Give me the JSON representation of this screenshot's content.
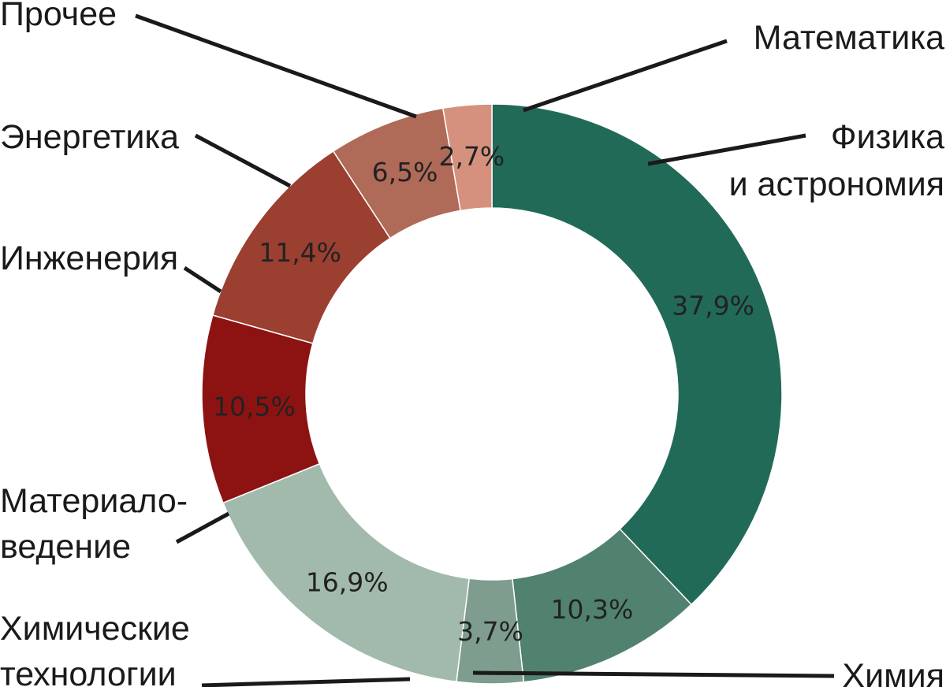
{
  "chart_data": {
    "type": "pie",
    "donut": true,
    "unit": "%",
    "slices": [
      {
        "label": "Физика и астрономия",
        "value": 37.9,
        "display": "37,9%",
        "color": "#226a58"
      },
      {
        "label": "Химия",
        "value": 10.3,
        "display": "10,3%",
        "color": "#518270"
      },
      {
        "label": "Химические технологии",
        "value": 3.7,
        "display": "3,7%",
        "color": "#7e9d8f"
      },
      {
        "label": "Материаловедение",
        "value": 16.9,
        "display": "16,9%",
        "color": "#a2baab"
      },
      {
        "label": "Инженерия",
        "value": 10.5,
        "display": "10,5%",
        "color": "#8d1313"
      },
      {
        "label": "Энергетика",
        "value": 11.4,
        "display": "11,4%",
        "color": "#9b3f31"
      },
      {
        "label": "Прочее",
        "value": 6.5,
        "display": "6,5%",
        "color": "#b06a58"
      },
      {
        "label": "Математика",
        "value": 2.7,
        "display": "2,7%",
        "color": "#d5917d"
      }
    ],
    "category_labels": [
      {
        "name": "matematika",
        "lines": [
          "Математика"
        ]
      },
      {
        "name": "fizika",
        "lines": [
          "Физика",
          "и астрономия"
        ]
      },
      {
        "name": "prochee",
        "lines": [
          "Прочее"
        ]
      },
      {
        "name": "energetika",
        "lines": [
          "Энергетика"
        ]
      },
      {
        "name": "inzheneriya",
        "lines": [
          "Инженерия"
        ]
      },
      {
        "name": "materialovedenie",
        "lines": [
          "Материало-",
          "ведение"
        ]
      },
      {
        "name": "khim-tekhnologii",
        "lines": [
          "Химические",
          "технологии"
        ]
      },
      {
        "name": "khimiya",
        "lines": [
          "Химия"
        ]
      }
    ]
  }
}
